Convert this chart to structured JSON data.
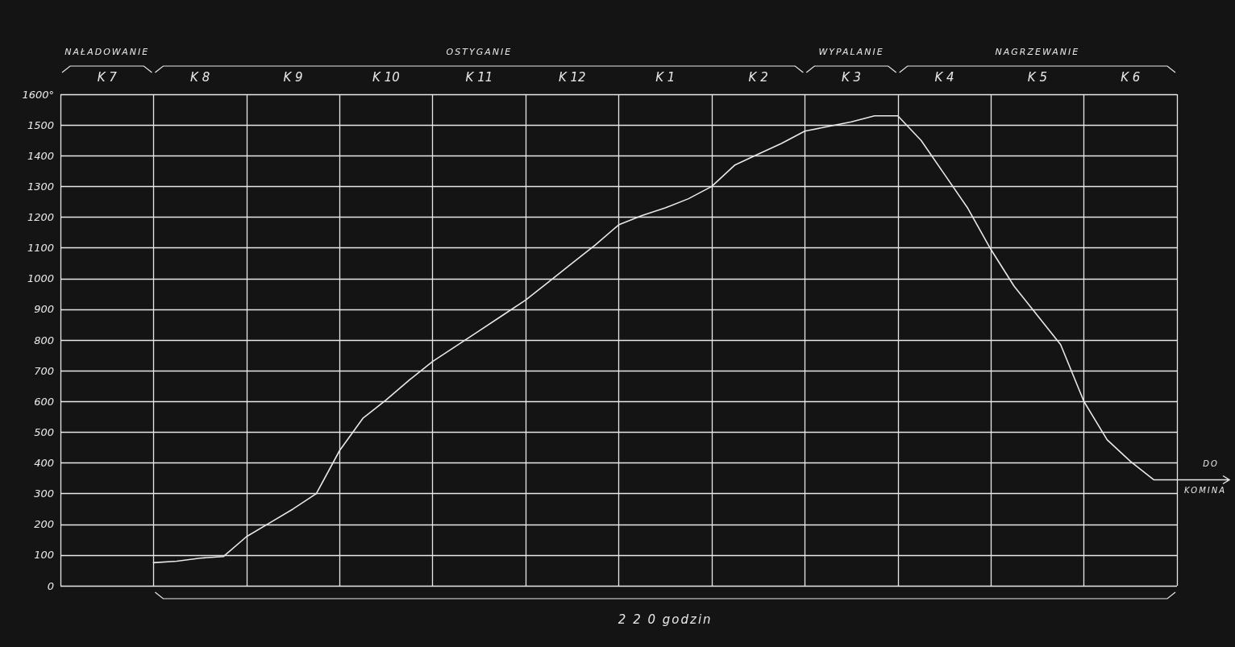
{
  "chart_data": {
    "type": "line",
    "categories": [
      null,
      null,
      "K 7",
      null,
      null,
      null,
      "K 8",
      null,
      null,
      null,
      "K 9",
      null,
      null,
      null,
      "K 10",
      null,
      null,
      null,
      "K 11",
      null,
      null,
      null,
      "K 12",
      null,
      null,
      null,
      "K 1",
      null,
      null,
      null,
      "K 2",
      null,
      null,
      null,
      "K 3",
      null,
      null,
      null,
      "K 4",
      null,
      null,
      null,
      "K 5",
      null,
      null,
      null,
      "K 6",
      null,
      null
    ],
    "series": [
      {
        "color": "#e8e8e8",
        "values": [
          null,
          null,
          null,
          null,
          75,
          80,
          90,
          95,
          160,
          205,
          250,
          300,
          440,
          545,
          605,
          670,
          730,
          780,
          830,
          880,
          930,
          990,
          1050,
          1110,
          1175,
          1205,
          1230,
          1260,
          1300,
          1370,
          1405,
          1440,
          1480,
          1495,
          1510,
          1530,
          1530,
          1450,
          1340,
          1230,
          1095,
          975,
          880,
          785,
          600,
          475,
          405,
          345,
          345
        ]
      }
    ],
    "ylim": [
      0,
      1600
    ],
    "yticks": [
      0,
      100,
      200,
      300,
      400,
      500,
      600,
      700,
      800,
      900,
      1000,
      1100,
      1200,
      1300,
      1400,
      1500,
      {
        "value": 1600,
        "label": "1600°"
      }
    ],
    "grid": true,
    "marker": "none",
    "line_style": "solid",
    "annotations": [
      "NAŁADOWANIE",
      "OSTYGANIE",
      "WYPALANIE",
      "NAGRZEWANIE",
      "2 2 0 godzin",
      "DO",
      "KOMINA"
    ]
  }
}
